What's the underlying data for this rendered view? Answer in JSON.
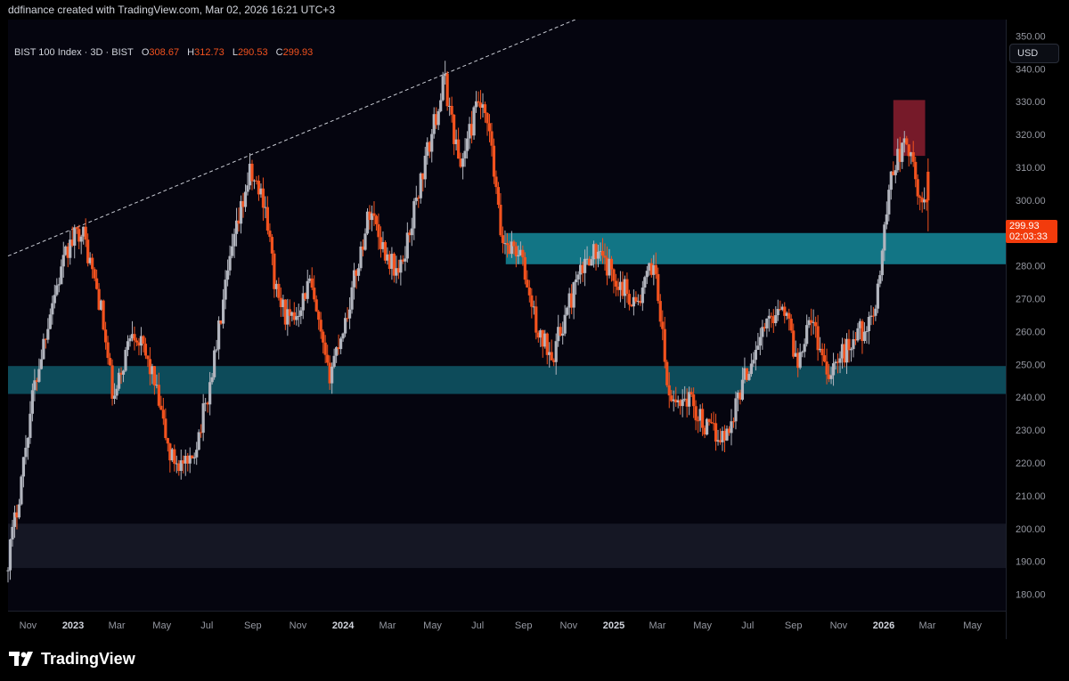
{
  "header": {
    "text": "ddfinance created with TradingView.com, Mar 02, 2026 16:21 UTC+3"
  },
  "legend": {
    "symbol": "BIST 100 Index · 3D · BIST",
    "o_label": "O",
    "o_value": "308.67",
    "h_label": "H",
    "h_value": "312.73",
    "l_label": "L",
    "l_value": "290.53",
    "c_label": "C",
    "c_value": "299.93"
  },
  "currency": "USD",
  "last_price": {
    "value": "299.93",
    "countdown": "02:03:33"
  },
  "footer": {
    "brand": "TradingView"
  },
  "colors": {
    "background": "#05050f",
    "up": "#b2b5be",
    "down": "#f2521e",
    "support_zone": "#0e4f5f",
    "mid_zone": "#137b8c",
    "resistance_zone": "#8b1e2e",
    "low_zone": "#161826"
  },
  "chart_data": {
    "type": "candlestick",
    "title": "BIST 100 Index · 3D · BIST",
    "y_axis": {
      "min": 175,
      "max": 355,
      "ticks": [
        350,
        340,
        330,
        320,
        310,
        300,
        290,
        280,
        270,
        260,
        250,
        240,
        230,
        220,
        210,
        200,
        190,
        180
      ],
      "tick_labels": [
        "350.00",
        "340.00",
        "330.00",
        "320.00",
        "310.00",
        "300.00",
        "290.00",
        "280.00",
        "270.00",
        "260.00",
        "250.00",
        "240.00",
        "230.00",
        "220.00",
        "210.00",
        "200.00",
        "190.00",
        "180.00"
      ]
    },
    "x_axis": {
      "ticks": [
        {
          "label": "Nov",
          "date": "2022-11-01",
          "bold": false
        },
        {
          "label": "2023",
          "date": "2023-01-01",
          "bold": true
        },
        {
          "label": "Mar",
          "date": "2023-03-01",
          "bold": false
        },
        {
          "label": "May",
          "date": "2023-05-01",
          "bold": false
        },
        {
          "label": "Jul",
          "date": "2023-07-01",
          "bold": false
        },
        {
          "label": "Sep",
          "date": "2023-09-01",
          "bold": false
        },
        {
          "label": "Nov",
          "date": "2023-11-01",
          "bold": false
        },
        {
          "label": "2024",
          "date": "2024-01-01",
          "bold": true
        },
        {
          "label": "Mar",
          "date": "2024-03-01",
          "bold": false
        },
        {
          "label": "May",
          "date": "2024-05-01",
          "bold": false
        },
        {
          "label": "Jul",
          "date": "2024-07-01",
          "bold": false
        },
        {
          "label": "Sep",
          "date": "2024-09-01",
          "bold": false
        },
        {
          "label": "Nov",
          "date": "2024-11-01",
          "bold": false
        },
        {
          "label": "2025",
          "date": "2025-01-01",
          "bold": true
        },
        {
          "label": "Mar",
          "date": "2025-03-01",
          "bold": false
        },
        {
          "label": "May",
          "date": "2025-05-01",
          "bold": false
        },
        {
          "label": "Jul",
          "date": "2025-07-01",
          "bold": false
        },
        {
          "label": "Sep",
          "date": "2025-09-01",
          "bold": false
        },
        {
          "label": "Nov",
          "date": "2025-11-01",
          "bold": false
        },
        {
          "label": "2026",
          "date": "2026-01-01",
          "bold": true
        },
        {
          "label": "Mar",
          "date": "2026-03-01",
          "bold": false
        },
        {
          "label": "May",
          "date": "2026-05-01",
          "bold": false
        }
      ]
    },
    "zones": [
      {
        "name": "zone-support-lower",
        "from_date": "2022-10-05",
        "to_date": "2026-06-15",
        "low": 241,
        "high": 249.5,
        "color": "#0e4f5f"
      },
      {
        "name": "zone-support-mid",
        "from_date": "2024-08-08",
        "to_date": "2026-06-15",
        "low": 280.5,
        "high": 290,
        "color": "#137b8c"
      },
      {
        "name": "zone-resistance",
        "from_date": "2026-01-14",
        "to_date": "2026-02-26",
        "low": 313.5,
        "high": 330.5,
        "color": "#8b1e2e"
      },
      {
        "name": "zone-low",
        "from_date": "2022-10-05",
        "to_date": "2026-06-15",
        "low": 188,
        "high": 201.5,
        "color": "#161826"
      }
    ],
    "trendline": {
      "dashed": true,
      "points": [
        {
          "date": "2022-10-05",
          "value": 283
        },
        {
          "date": "2024-11-10",
          "value": 355
        }
      ]
    },
    "keypoints": [
      {
        "date": "2022-10-05",
        "value": 187
      },
      {
        "date": "2022-10-20",
        "value": 206
      },
      {
        "date": "2022-11-10",
        "value": 240
      },
      {
        "date": "2022-12-05",
        "value": 268
      },
      {
        "date": "2022-12-28",
        "value": 285
      },
      {
        "date": "2023-01-15",
        "value": 292
      },
      {
        "date": "2023-02-10",
        "value": 268
      },
      {
        "date": "2023-02-28",
        "value": 238
      },
      {
        "date": "2023-03-25",
        "value": 262
      },
      {
        "date": "2023-04-20",
        "value": 248
      },
      {
        "date": "2023-05-15",
        "value": 222
      },
      {
        "date": "2023-06-10",
        "value": 218
      },
      {
        "date": "2023-07-05",
        "value": 240
      },
      {
        "date": "2023-08-05",
        "value": 282
      },
      {
        "date": "2023-08-30",
        "value": 308
      },
      {
        "date": "2023-09-20",
        "value": 300
      },
      {
        "date": "2023-10-05",
        "value": 272
      },
      {
        "date": "2023-10-25",
        "value": 262
      },
      {
        "date": "2023-11-20",
        "value": 275
      },
      {
        "date": "2023-12-15",
        "value": 246
      },
      {
        "date": "2024-01-10",
        "value": 266
      },
      {
        "date": "2024-02-10",
        "value": 298
      },
      {
        "date": "2024-02-28",
        "value": 285
      },
      {
        "date": "2024-03-20",
        "value": 277
      },
      {
        "date": "2024-04-15",
        "value": 303
      },
      {
        "date": "2024-05-05",
        "value": 322
      },
      {
        "date": "2024-05-20",
        "value": 337
      },
      {
        "date": "2024-06-10",
        "value": 310
      },
      {
        "date": "2024-07-05",
        "value": 330
      },
      {
        "date": "2024-07-20",
        "value": 320
      },
      {
        "date": "2024-08-05",
        "value": 288
      },
      {
        "date": "2024-08-30",
        "value": 284
      },
      {
        "date": "2024-09-25",
        "value": 258
      },
      {
        "date": "2024-10-15",
        "value": 254
      },
      {
        "date": "2024-11-10",
        "value": 272
      },
      {
        "date": "2024-12-05",
        "value": 285
      },
      {
        "date": "2025-01-05",
        "value": 277
      },
      {
        "date": "2025-02-05",
        "value": 268
      },
      {
        "date": "2025-02-28",
        "value": 282
      },
      {
        "date": "2025-03-20",
        "value": 238
      },
      {
        "date": "2025-04-15",
        "value": 240
      },
      {
        "date": "2025-05-10",
        "value": 230
      },
      {
        "date": "2025-06-05",
        "value": 228
      },
      {
        "date": "2025-06-25",
        "value": 243
      },
      {
        "date": "2025-07-20",
        "value": 258
      },
      {
        "date": "2025-08-20",
        "value": 270
      },
      {
        "date": "2025-09-10",
        "value": 250
      },
      {
        "date": "2025-09-25",
        "value": 266
      },
      {
        "date": "2025-10-20",
        "value": 248
      },
      {
        "date": "2025-11-10",
        "value": 253
      },
      {
        "date": "2025-12-01",
        "value": 260
      },
      {
        "date": "2025-12-20",
        "value": 262
      },
      {
        "date": "2026-01-02",
        "value": 285
      },
      {
        "date": "2026-01-15",
        "value": 310
      },
      {
        "date": "2026-02-05",
        "value": 318
      },
      {
        "date": "2026-02-20",
        "value": 300
      }
    ],
    "last_candle": {
      "date": "2026-03-02",
      "open": 308.67,
      "high": 312.73,
      "low": 290.53,
      "close": 299.93
    }
  }
}
